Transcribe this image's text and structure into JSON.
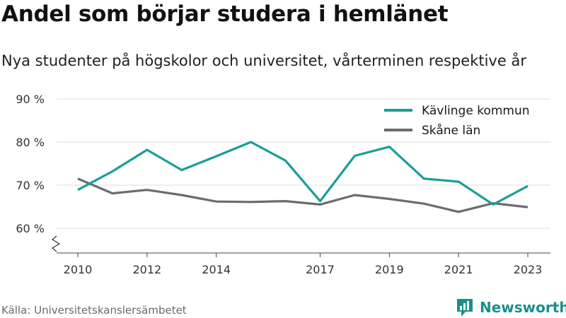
{
  "title": "Andel som börjar studera i hemlänet",
  "subtitle": "Nya studenter på högskolor och universitet, vårterminen respektive år",
  "source": "Källa: Universitetskanslersämbetet",
  "brand": {
    "name": "Newsworthy",
    "icon": "newsworthy-bar-chart-icon",
    "color": "#1a8f8a"
  },
  "chart_data": {
    "type": "line",
    "x": [
      2010,
      2011,
      2012,
      2013,
      2014,
      2015,
      2016,
      2017,
      2018,
      2019,
      2020,
      2021,
      2022,
      2023
    ],
    "series": [
      {
        "name": "Kävlinge kommun",
        "color": "#1a9e96",
        "values": [
          68.9,
          73.2,
          78.2,
          73.5,
          76.7,
          80.0,
          75.7,
          66.3,
          76.8,
          78.9,
          71.5,
          70.8,
          65.5,
          69.8
        ]
      },
      {
        "name": "Skåne län",
        "color": "#6b6b72",
        "values": [
          71.5,
          68.1,
          68.9,
          67.7,
          66.2,
          66.1,
          66.3,
          65.5,
          67.7,
          66.8,
          65.7,
          63.8,
          65.8,
          64.9
        ]
      }
    ],
    "xticks": [
      2010,
      2012,
      2014,
      2017,
      2019,
      2021,
      2023
    ],
    "yticks": [
      {
        "value": 60,
        "label": "60 %"
      },
      {
        "value": 70,
        "label": "70 %"
      },
      {
        "value": 80,
        "label": "80 %"
      },
      {
        "value": 90,
        "label": "90 %"
      }
    ],
    "ylim": [
      60,
      90
    ],
    "xlim": [
      2010,
      2023
    ],
    "grid": true,
    "y_axis_break": true,
    "legend_position": "top-right"
  }
}
